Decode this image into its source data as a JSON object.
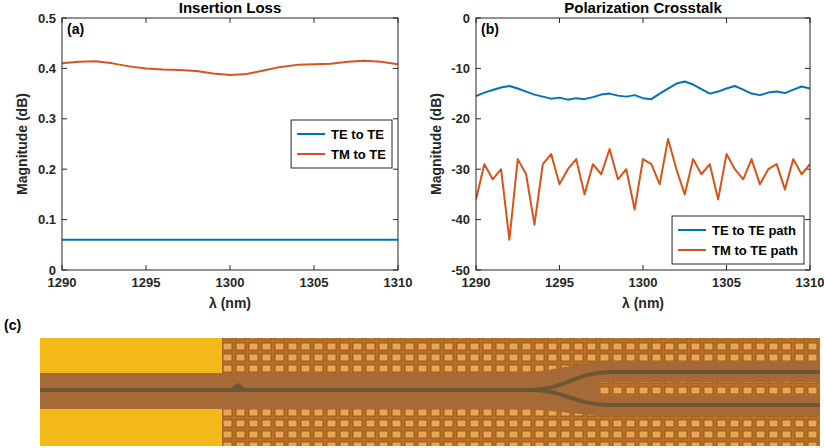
{
  "chart_data": [
    {
      "type": "line",
      "title": "Insertion Loss",
      "panel_label": "(a)",
      "x_label": "λ (nm)",
      "y_label": "Magnitude (dB)",
      "x": [
        1290,
        1291,
        1292,
        1293,
        1294,
        1295,
        1296,
        1297,
        1298,
        1299,
        1300,
        1301,
        1302,
        1303,
        1304,
        1305,
        1306,
        1307,
        1308,
        1309,
        1310
      ],
      "xlim": [
        1290,
        1310
      ],
      "xticks": [
        1290,
        1295,
        1300,
        1305,
        1310
      ],
      "ylim": [
        0,
        0.5
      ],
      "yticks": [
        0,
        0.1,
        0.2,
        0.3,
        0.4,
        0.5
      ],
      "grid": false,
      "legend": "center right",
      "series": [
        {
          "name": "TE to TE",
          "color": "#0072BD",
          "values": [
            0.06,
            0.06,
            0.06,
            0.06,
            0.06,
            0.06,
            0.06,
            0.06,
            0.06,
            0.06,
            0.06,
            0.06,
            0.06,
            0.06,
            0.06,
            0.06,
            0.06,
            0.06,
            0.06,
            0.06,
            0.06
          ]
        },
        {
          "name": "TM to TE",
          "color": "#D95319",
          "values": [
            0.41,
            0.413,
            0.414,
            0.41,
            0.404,
            0.4,
            0.398,
            0.397,
            0.395,
            0.39,
            0.387,
            0.389,
            0.396,
            0.403,
            0.407,
            0.408,
            0.409,
            0.413,
            0.415,
            0.413,
            0.408
          ]
        }
      ]
    },
    {
      "type": "line",
      "title": "Polarization Crosstalk",
      "panel_label": "(b)",
      "x_label": "λ (nm)",
      "y_label": "Magnitude (dB)",
      "x": [
        1290,
        1290.5,
        1291,
        1291.5,
        1292,
        1292.5,
        1293,
        1293.5,
        1294,
        1294.5,
        1295,
        1295.5,
        1296,
        1296.5,
        1297,
        1297.5,
        1298,
        1298.5,
        1299,
        1299.5,
        1300,
        1300.5,
        1301,
        1301.5,
        1302,
        1302.5,
        1303,
        1303.5,
        1304,
        1304.5,
        1305,
        1305.5,
        1306,
        1306.5,
        1307,
        1307.5,
        1308,
        1308.5,
        1309,
        1309.5,
        1310
      ],
      "xlim": [
        1290,
        1310
      ],
      "xticks": [
        1290,
        1295,
        1300,
        1305,
        1310
      ],
      "ylim": [
        -50,
        0
      ],
      "yticks": [
        -50,
        -40,
        -30,
        -20,
        -10,
        0
      ],
      "grid": false,
      "legend": "lower right",
      "series": [
        {
          "name": "TE to TE path",
          "color": "#0072BD",
          "values": [
            -15.5,
            -14.8,
            -14.3,
            -13.8,
            -13.5,
            -14.0,
            -14.6,
            -15.2,
            -15.6,
            -16.0,
            -15.8,
            -16.2,
            -15.9,
            -16.1,
            -15.7,
            -15.2,
            -15.0,
            -15.4,
            -15.6,
            -15.3,
            -15.9,
            -16.1,
            -15.0,
            -14.0,
            -13.0,
            -12.6,
            -13.2,
            -14.1,
            -15.0,
            -14.6,
            -14.0,
            -13.5,
            -14.2,
            -15.0,
            -15.3,
            -14.8,
            -14.6,
            -14.9,
            -14.2,
            -13.6,
            -14.0
          ]
        },
        {
          "name": "TM to TE path",
          "color": "#D95319",
          "values": [
            -36,
            -29,
            -32,
            -30,
            -44,
            -28,
            -31,
            -41,
            -29,
            -27,
            -33,
            -30,
            -28,
            -35,
            -29,
            -31,
            -26,
            -32,
            -30,
            -38,
            -28,
            -29,
            -33,
            -24,
            -30,
            -35,
            -28,
            -31,
            -29,
            -36,
            -27,
            -30,
            -32,
            -28,
            -33,
            -30,
            -29,
            -34,
            -28,
            -31,
            -29
          ]
        }
      ]
    }
  ],
  "image_panel": {
    "panel_label": "(c)"
  }
}
